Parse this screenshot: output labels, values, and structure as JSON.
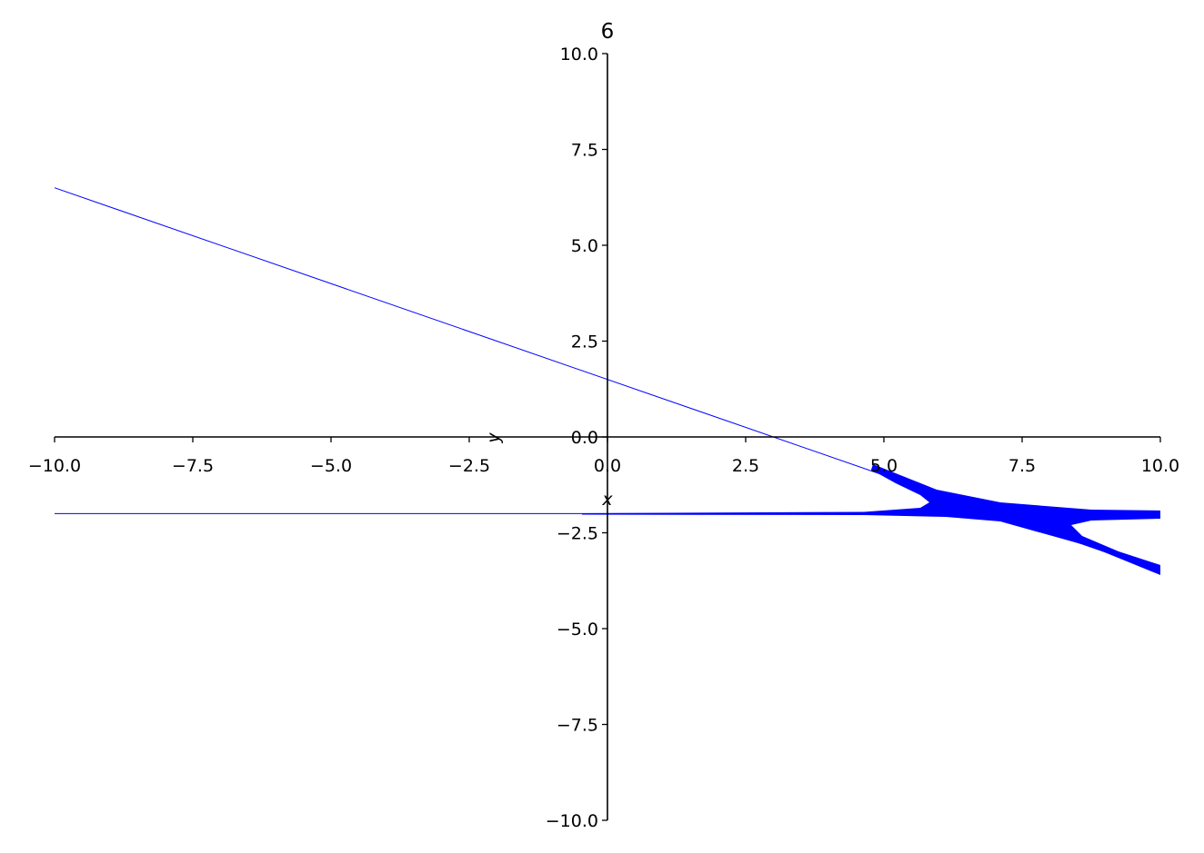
{
  "chart_data": {
    "type": "line",
    "title": "6",
    "xlabel": "x",
    "ylabel": "y",
    "xlim": [
      -10,
      10
    ],
    "ylim": [
      -10,
      10
    ],
    "xticks": [
      "−10.0",
      "−7.5",
      "−5.0",
      "−2.5",
      "0.0",
      "2.5",
      "5.0",
      "7.5",
      "10.0"
    ],
    "yticks": [
      "−10.0",
      "−7.5",
      "−5.0",
      "−2.5",
      "0.0",
      "2.5",
      "5.0",
      "7.5",
      "10.0"
    ],
    "grid": false,
    "color": "#0000ff",
    "series": [
      {
        "x": [
          -10,
          10
        ],
        "y": [
          6.5,
          -3.5
        ]
      },
      {
        "x": [
          -10,
          10
        ],
        "y": [
          -2.0,
          -2.0
        ]
      }
    ]
  }
}
